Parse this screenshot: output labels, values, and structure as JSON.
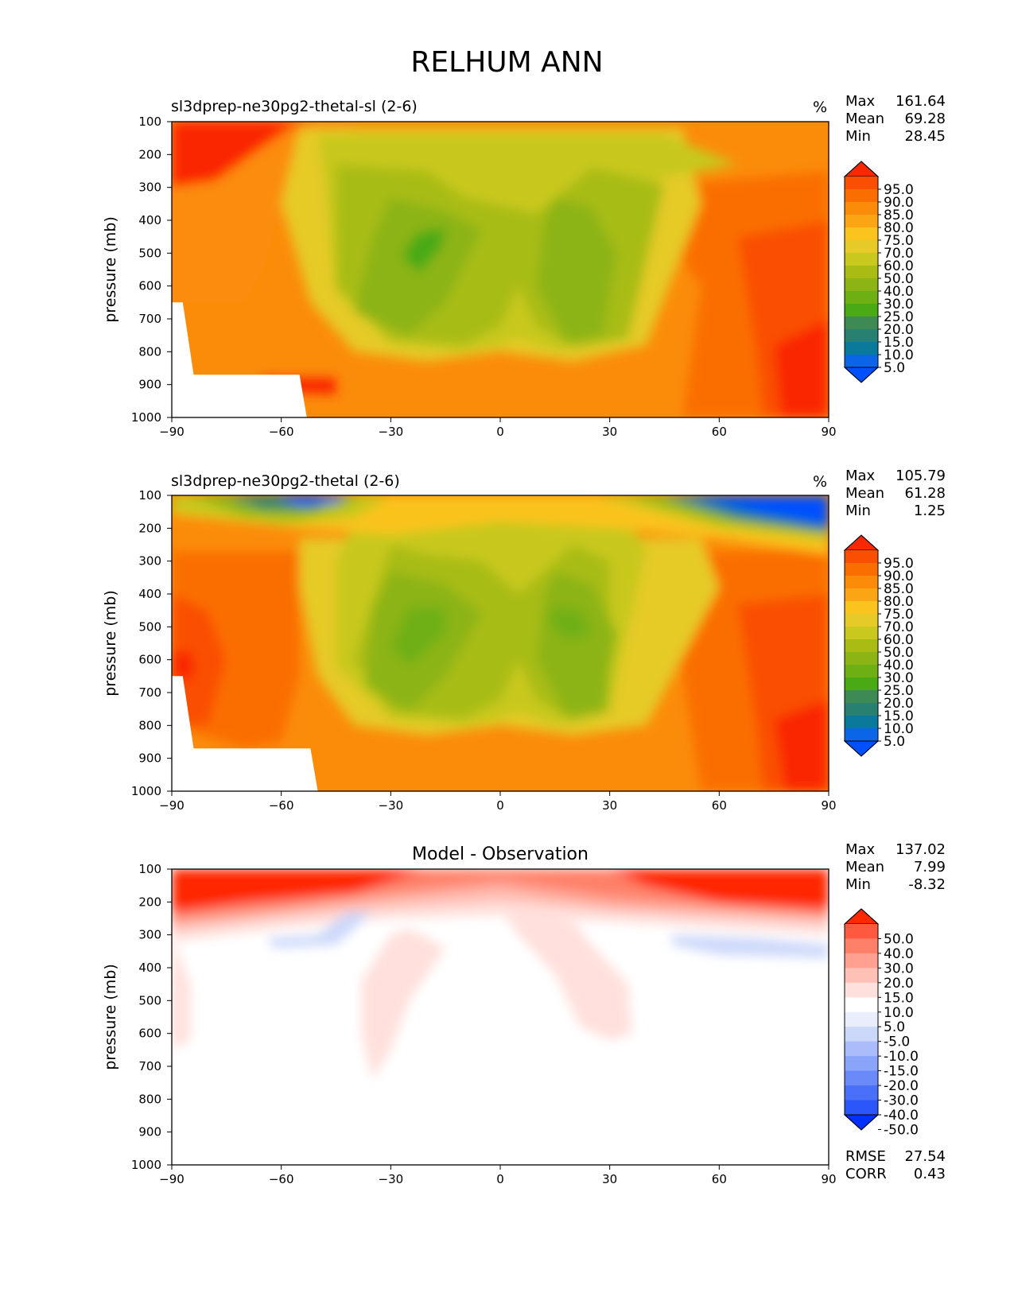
{
  "page_title": "RELHUM ANN",
  "colors": {
    "rh_levels": [
      "#0050ff",
      "#0a66e6",
      "#0a7a9a",
      "#288070",
      "#3d8a55",
      "#4aaa14",
      "#6eb014",
      "#8cb414",
      "#a8bc14",
      "#c8c81e",
      "#e6ca28",
      "#fac31e",
      "#fca514",
      "#fb8c0a",
      "#fa6e00",
      "#fa4f00",
      "#fa2800"
    ],
    "diff_levels": [
      "#0030ff",
      "#2a56fa",
      "#4a70fa",
      "#6a8afa",
      "#8aa4fa",
      "#aabcfa",
      "#ccd8fa",
      "#eaeefc",
      "#ffffff",
      "#ffe0dc",
      "#ffc0b6",
      "#ffa090",
      "#ff8068",
      "#ff5a40",
      "#ff2800"
    ]
  },
  "panels": [
    {
      "title": "sl3dprep-ne30pg2-thetal-sl (2-6)",
      "unit": "%",
      "stats": {
        "max_label": "Max",
        "max": "161.64",
        "mean_label": "Mean",
        "mean": "69.28",
        "min_label": "Min",
        "min": "28.45"
      },
      "colorbar_ticks": [
        "95.0",
        "90.0",
        "85.0",
        "80.0",
        "75.0",
        "70.0",
        "60.0",
        "50.0",
        "40.0",
        "30.0",
        "25.0",
        "20.0",
        "15.0",
        "10.0",
        "5.0"
      ]
    },
    {
      "title": "sl3dprep-ne30pg2-thetal (2-6)",
      "unit": "%",
      "stats": {
        "max_label": "Max",
        "max": "105.79",
        "mean_label": "Mean",
        "mean": "61.28",
        "min_label": "Min",
        "min": "1.25"
      },
      "colorbar_ticks": [
        "95.0",
        "90.0",
        "85.0",
        "80.0",
        "75.0",
        "70.0",
        "60.0",
        "50.0",
        "40.0",
        "30.0",
        "25.0",
        "20.0",
        "15.0",
        "10.0",
        "5.0"
      ]
    },
    {
      "title": "Model - Observation",
      "stats": {
        "max_label": "Max",
        "max": "137.02",
        "mean_label": "Mean",
        "mean": "7.99",
        "min_label": "Min",
        "min": "-8.32"
      },
      "colorbar_ticks": [
        "50.0",
        "40.0",
        "30.0",
        "20.0",
        "15.0",
        "10.0",
        "5.0",
        "-5.0",
        "-10.0",
        "-15.0",
        "-20.0",
        "-30.0",
        "-40.0",
        "-50.0"
      ],
      "footer": {
        "rmse_label": "RMSE",
        "rmse": "27.54",
        "corr_label": "CORR",
        "corr": "0.43"
      }
    }
  ],
  "chart_data": [
    {
      "type": "heatmap",
      "title": "sl3dprep-ne30pg2-thetal-sl (2-6)",
      "ylabel": "pressure (mb)",
      "x_ticks": [
        "−90",
        "−60",
        "−30",
        "0",
        "30",
        "60",
        "90"
      ],
      "y_ticks": [
        "100",
        "200",
        "300",
        "400",
        "500",
        "600",
        "700",
        "800",
        "900",
        "1000"
      ],
      "xlim": [
        -90,
        90
      ],
      "ylim": [
        1000,
        100
      ],
      "contour_levels": [
        5,
        10,
        15,
        20,
        25,
        30,
        40,
        50,
        60,
        70,
        75,
        80,
        85,
        90,
        95
      ],
      "colorbar_extend": "both"
    },
    {
      "type": "heatmap",
      "title": "sl3dprep-ne30pg2-thetal (2-6)",
      "ylabel": "pressure (mb)",
      "x_ticks": [
        "−90",
        "−60",
        "−30",
        "0",
        "30",
        "60",
        "90"
      ],
      "y_ticks": [
        "100",
        "200",
        "300",
        "400",
        "500",
        "600",
        "700",
        "800",
        "900",
        "1000"
      ],
      "xlim": [
        -90,
        90
      ],
      "ylim": [
        1000,
        100
      ],
      "contour_levels": [
        5,
        10,
        15,
        20,
        25,
        30,
        40,
        50,
        60,
        70,
        75,
        80,
        85,
        90,
        95
      ],
      "colorbar_extend": "both"
    },
    {
      "type": "heatmap",
      "title": "Model - Observation",
      "ylabel": "pressure (mb)",
      "x_ticks": [
        "−90",
        "−60",
        "−30",
        "0",
        "30",
        "60",
        "90"
      ],
      "y_ticks": [
        "100",
        "200",
        "300",
        "400",
        "500",
        "600",
        "700",
        "800",
        "900",
        "1000"
      ],
      "xlim": [
        -90,
        90
      ],
      "ylim": [
        1000,
        100
      ],
      "contour_levels": [
        -50,
        -40,
        -30,
        -20,
        -15,
        -10,
        -5,
        5,
        10,
        15,
        20,
        30,
        40,
        50
      ],
      "colorbar_extend": "both"
    }
  ]
}
